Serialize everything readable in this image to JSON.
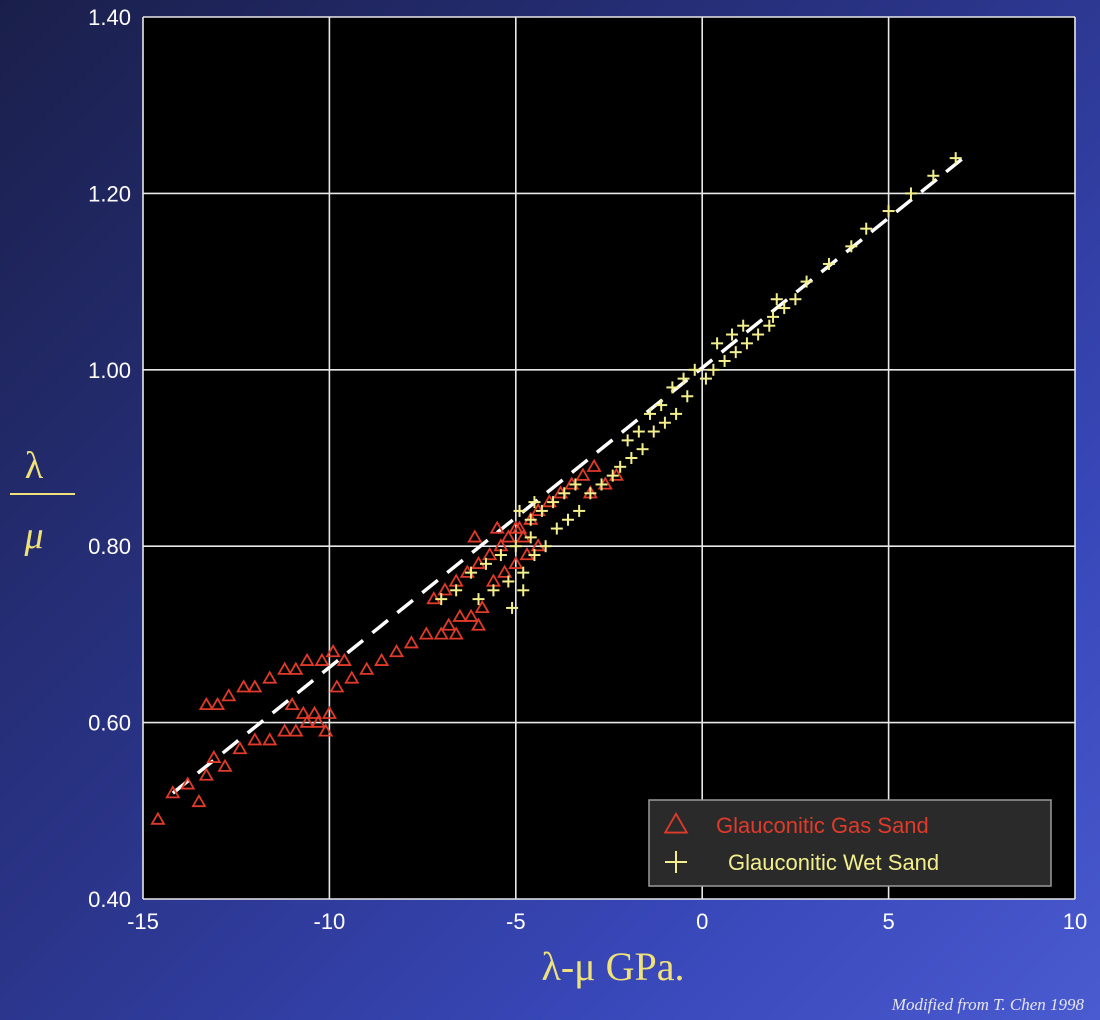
{
  "chart_data": {
    "type": "scatter",
    "xlabel": "λ-μ GPa.",
    "ylabel_numerator": "λ",
    "ylabel_denominator": "μ",
    "xlim": [
      -15,
      10
    ],
    "ylim": [
      0.4,
      1.4
    ],
    "x_ticks": [
      -15,
      -10,
      -5,
      0,
      5,
      10
    ],
    "x_tick_labels": [
      "-15",
      "-10",
      "-5",
      "0",
      "5",
      "10"
    ],
    "y_ticks": [
      0.4,
      0.6,
      0.8,
      1.0,
      1.2,
      1.4
    ],
    "y_tick_labels": [
      "0.40",
      "0.60",
      "0.80",
      "1.00",
      "1.20",
      "1.40"
    ],
    "grid": true,
    "legend_position": "bottom-right",
    "trend_line": {
      "style": "dashed",
      "color": "#ffffff",
      "x": [
        -14.2,
        7.0
      ],
      "y": [
        0.52,
        1.24
      ]
    },
    "series": [
      {
        "name": "Glauconitic Gas Sand",
        "marker": "triangle",
        "color": "#e03a2a",
        "points": [
          [
            -14.6,
            0.49
          ],
          [
            -14.2,
            0.52
          ],
          [
            -13.8,
            0.53
          ],
          [
            -13.5,
            0.51
          ],
          [
            -13.3,
            0.54
          ],
          [
            -13.1,
            0.56
          ],
          [
            -12.8,
            0.55
          ],
          [
            -13.3,
            0.62
          ],
          [
            -13.0,
            0.62
          ],
          [
            -12.7,
            0.63
          ],
          [
            -12.3,
            0.64
          ],
          [
            -12.0,
            0.64
          ],
          [
            -11.6,
            0.65
          ],
          [
            -11.2,
            0.66
          ],
          [
            -10.9,
            0.66
          ],
          [
            -10.6,
            0.67
          ],
          [
            -10.2,
            0.67
          ],
          [
            -9.9,
            0.68
          ],
          [
            -9.6,
            0.67
          ],
          [
            -12.4,
            0.57
          ],
          [
            -12.0,
            0.58
          ],
          [
            -11.6,
            0.58
          ],
          [
            -11.2,
            0.59
          ],
          [
            -10.9,
            0.59
          ],
          [
            -10.6,
            0.6
          ],
          [
            -10.3,
            0.6
          ],
          [
            -10.1,
            0.59
          ],
          [
            -10.4,
            0.61
          ],
          [
            -10.7,
            0.61
          ],
          [
            -11.0,
            0.62
          ],
          [
            -10.0,
            0.61
          ],
          [
            -9.8,
            0.64
          ],
          [
            -9.4,
            0.65
          ],
          [
            -9.0,
            0.66
          ],
          [
            -8.6,
            0.67
          ],
          [
            -8.2,
            0.68
          ],
          [
            -7.8,
            0.69
          ],
          [
            -7.4,
            0.7
          ],
          [
            -7.0,
            0.7
          ],
          [
            -6.8,
            0.71
          ],
          [
            -6.5,
            0.72
          ],
          [
            -6.2,
            0.72
          ],
          [
            -5.9,
            0.73
          ],
          [
            -6.6,
            0.7
          ],
          [
            -6.0,
            0.71
          ],
          [
            -7.2,
            0.74
          ],
          [
            -6.9,
            0.75
          ],
          [
            -6.6,
            0.76
          ],
          [
            -6.3,
            0.77
          ],
          [
            -6.0,
            0.78
          ],
          [
            -5.7,
            0.79
          ],
          [
            -5.4,
            0.8
          ],
          [
            -5.2,
            0.81
          ],
          [
            -4.9,
            0.82
          ],
          [
            -4.6,
            0.83
          ],
          [
            -4.4,
            0.84
          ],
          [
            -4.1,
            0.85
          ],
          [
            -3.8,
            0.86
          ],
          [
            -3.5,
            0.87
          ],
          [
            -3.2,
            0.88
          ],
          [
            -2.9,
            0.89
          ],
          [
            -5.6,
            0.76
          ],
          [
            -5.3,
            0.77
          ],
          [
            -5.0,
            0.78
          ],
          [
            -4.7,
            0.79
          ],
          [
            -4.4,
            0.8
          ],
          [
            -3.0,
            0.86
          ],
          [
            -2.6,
            0.87
          ],
          [
            -2.3,
            0.88
          ],
          [
            -5.0,
            0.82
          ],
          [
            -4.8,
            0.81
          ],
          [
            -5.5,
            0.82
          ],
          [
            -6.1,
            0.81
          ]
        ]
      },
      {
        "name": "Glauconitic Wet Sand",
        "marker": "plus",
        "color": "#f2ef8c",
        "points": [
          [
            -7.0,
            0.74
          ],
          [
            -6.6,
            0.75
          ],
          [
            -6.2,
            0.77
          ],
          [
            -5.8,
            0.78
          ],
          [
            -5.4,
            0.79
          ],
          [
            -5.0,
            0.8
          ],
          [
            -4.6,
            0.81
          ],
          [
            -6.0,
            0.74
          ],
          [
            -5.6,
            0.75
          ],
          [
            -5.2,
            0.76
          ],
          [
            -4.8,
            0.77
          ],
          [
            -4.5,
            0.79
          ],
          [
            -5.1,
            0.73
          ],
          [
            -4.8,
            0.75
          ],
          [
            -4.2,
            0.8
          ],
          [
            -3.9,
            0.82
          ],
          [
            -3.6,
            0.83
          ],
          [
            -3.3,
            0.84
          ],
          [
            -3.0,
            0.86
          ],
          [
            -2.7,
            0.87
          ],
          [
            -2.4,
            0.88
          ],
          [
            -4.6,
            0.83
          ],
          [
            -4.3,
            0.84
          ],
          [
            -4.0,
            0.85
          ],
          [
            -3.7,
            0.86
          ],
          [
            -3.4,
            0.87
          ],
          [
            -4.9,
            0.84
          ],
          [
            -4.5,
            0.85
          ],
          [
            -2.2,
            0.89
          ],
          [
            -1.9,
            0.9
          ],
          [
            -1.6,
            0.91
          ],
          [
            -1.3,
            0.93
          ],
          [
            -1.0,
            0.94
          ],
          [
            -0.7,
            0.95
          ],
          [
            -0.4,
            0.97
          ],
          [
            -2.0,
            0.92
          ],
          [
            -1.7,
            0.93
          ],
          [
            -1.4,
            0.95
          ],
          [
            -1.1,
            0.96
          ],
          [
            -0.8,
            0.98
          ],
          [
            -0.5,
            0.99
          ],
          [
            -0.2,
            1.0
          ],
          [
            0.1,
            0.99
          ],
          [
            0.3,
            1.0
          ],
          [
            0.6,
            1.01
          ],
          [
            0.9,
            1.02
          ],
          [
            1.2,
            1.03
          ],
          [
            1.5,
            1.04
          ],
          [
            1.8,
            1.05
          ],
          [
            0.4,
            1.03
          ],
          [
            0.8,
            1.04
          ],
          [
            1.1,
            1.05
          ],
          [
            1.9,
            1.06
          ],
          [
            2.2,
            1.07
          ],
          [
            2.5,
            1.08
          ],
          [
            2.0,
            1.08
          ],
          [
            2.8,
            1.1
          ],
          [
            3.4,
            1.12
          ],
          [
            4.0,
            1.14
          ],
          [
            4.4,
            1.16
          ],
          [
            5.0,
            1.18
          ],
          [
            5.6,
            1.2
          ],
          [
            6.2,
            1.22
          ],
          [
            6.8,
            1.24
          ]
        ]
      }
    ]
  },
  "credit": "Modified from T. Chen 1998"
}
